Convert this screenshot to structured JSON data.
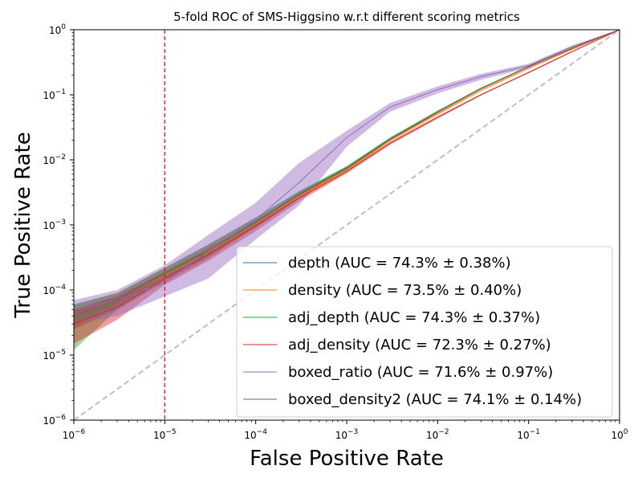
{
  "chart_data": {
    "type": "line",
    "title": "5-fold ROC of SMS-Higgsino w.r.t different scoring metrics",
    "xlabel": "False Positive Rate",
    "ylabel": "True Positive Rate",
    "xscale": "log",
    "yscale": "log",
    "xlim": [
      1e-06,
      1
    ],
    "ylim": [
      1e-06,
      1
    ],
    "x_ticks": [
      {
        "value": 1e-06,
        "label": "10",
        "exp": "−6"
      },
      {
        "value": 1e-05,
        "label": "10",
        "exp": "−5"
      },
      {
        "value": 0.0001,
        "label": "10",
        "exp": "−4"
      },
      {
        "value": 0.001,
        "label": "10",
        "exp": "−3"
      },
      {
        "value": 0.01,
        "label": "10",
        "exp": "−2"
      },
      {
        "value": 0.1,
        "label": "10",
        "exp": "−1"
      },
      {
        "value": 1,
        "label": "10",
        "exp": "0"
      }
    ],
    "y_ticks": [
      {
        "value": 1e-06,
        "label": "10",
        "exp": "−6"
      },
      {
        "value": 1e-05,
        "label": "10",
        "exp": "−5"
      },
      {
        "value": 0.0001,
        "label": "10",
        "exp": "−4"
      },
      {
        "value": 0.001,
        "label": "10",
        "exp": "−3"
      },
      {
        "value": 0.01,
        "label": "10",
        "exp": "−2"
      },
      {
        "value": 0.1,
        "label": "10",
        "exp": "−1"
      },
      {
        "value": 1,
        "label": "10",
        "exp": "0"
      }
    ],
    "grid": false,
    "legend_position": "lower-right",
    "reference_vline": {
      "x": 1e-05,
      "color": "#ff0000",
      "style": "dashed"
    },
    "diagonal": {
      "color": "#bfbfbf",
      "style": "dashed"
    },
    "x": [
      1e-06,
      3e-06,
      1e-05,
      3e-05,
      0.0001,
      0.0003,
      0.001,
      0.003,
      0.01,
      0.03,
      0.1,
      0.3,
      1
    ],
    "series": [
      {
        "name": "depth (AUC = 74.3% ± 0.38%)",
        "color": "#1f77b4",
        "y": [
          4e-05,
          7e-05,
          0.00018,
          0.0004,
          0.0011,
          0.003,
          0.0075,
          0.021,
          0.055,
          0.125,
          0.27,
          0.52,
          1
        ],
        "lo": [
          2.5e-05,
          5e-05,
          0.00014,
          0.00032,
          0.00095,
          0.0027,
          0.007,
          0.02,
          0.053,
          0.122,
          0.265,
          0.51,
          1
        ],
        "hi": [
          6e-05,
          9e-05,
          0.00022,
          0.0005,
          0.0013,
          0.0033,
          0.008,
          0.022,
          0.057,
          0.128,
          0.275,
          0.53,
          1
        ]
      },
      {
        "name": "density (AUC = 73.5% ± 0.40%)",
        "color": "#ff7f0e",
        "y": [
          4e-05,
          7e-05,
          0.00017,
          0.00038,
          0.00105,
          0.0028,
          0.007,
          0.02,
          0.051,
          0.117,
          0.255,
          0.5,
          1
        ],
        "lo": [
          2.5e-05,
          5e-05,
          0.00013,
          0.0003,
          0.0009,
          0.0025,
          0.0065,
          0.019,
          0.049,
          0.114,
          0.25,
          0.49,
          1
        ],
        "hi": [
          6e-05,
          9e-05,
          0.00021,
          0.00048,
          0.00125,
          0.0031,
          0.0075,
          0.021,
          0.053,
          0.12,
          0.26,
          0.51,
          1
        ]
      },
      {
        "name": "adj_depth (AUC = 74.3% ± 0.37%)",
        "color": "#2ca02c",
        "y": [
          3.5e-05,
          7e-05,
          0.00018,
          0.0004,
          0.0011,
          0.003,
          0.0076,
          0.021,
          0.055,
          0.126,
          0.272,
          0.52,
          1
        ],
        "lo": [
          1.2e-05,
          5e-05,
          0.00014,
          0.00032,
          0.00095,
          0.0027,
          0.007,
          0.02,
          0.053,
          0.123,
          0.267,
          0.51,
          1
        ],
        "hi": [
          6e-05,
          9e-05,
          0.00022,
          0.0005,
          0.0013,
          0.0033,
          0.008,
          0.022,
          0.057,
          0.129,
          0.277,
          0.53,
          1
        ]
      },
      {
        "name": "adj_density (AUC = 72.3% ± 0.27%)",
        "color": "#d62728",
        "y": [
          3e-05,
          5.5e-05,
          0.00015,
          0.00035,
          0.00095,
          0.0026,
          0.0066,
          0.018,
          0.045,
          0.1,
          0.22,
          0.46,
          1
        ],
        "lo": [
          1.5e-05,
          3.5e-05,
          0.00012,
          0.00028,
          0.0008,
          0.0023,
          0.0062,
          0.017,
          0.043,
          0.098,
          0.215,
          0.45,
          1
        ],
        "hi": [
          5e-05,
          8e-05,
          0.00019,
          0.00044,
          0.00115,
          0.003,
          0.007,
          0.019,
          0.047,
          0.103,
          0.225,
          0.47,
          1
        ]
      },
      {
        "name": "boxed_ratio (AUC = 71.6% ± 0.97%)",
        "color": "#9467bd",
        "y": [
          5e-05,
          7e-05,
          0.00013,
          0.0004,
          0.0012,
          0.0045,
          0.022,
          0.065,
          0.12,
          0.19,
          0.28,
          0.55,
          1
        ],
        "lo": [
          3e-05,
          4e-05,
          8e-05,
          0.00015,
          0.0006,
          0.002,
          0.016,
          0.055,
          0.105,
          0.17,
          0.26,
          0.53,
          1
        ],
        "hi": [
          7e-05,
          0.0001,
          0.00024,
          0.0007,
          0.0022,
          0.009,
          0.028,
          0.075,
          0.135,
          0.21,
          0.3,
          0.57,
          1
        ]
      },
      {
        "name": "boxed_density2 (AUC = 74.1% ± 0.14%)",
        "color": "#8c564b",
        "y": [
          4e-05,
          7e-05,
          0.000175,
          0.00039,
          0.00108,
          0.00295,
          0.0074,
          0.0205,
          0.054,
          0.124,
          0.268,
          0.52,
          1
        ],
        "lo": [
          3e-05,
          6e-05,
          0.00016,
          0.00036,
          0.001,
          0.00285,
          0.0072,
          0.02,
          0.053,
          0.122,
          0.265,
          0.515,
          1
        ],
        "hi": [
          5e-05,
          8e-05,
          0.00019,
          0.00042,
          0.00115,
          0.00305,
          0.0076,
          0.021,
          0.055,
          0.126,
          0.271,
          0.525,
          1
        ]
      }
    ]
  }
}
